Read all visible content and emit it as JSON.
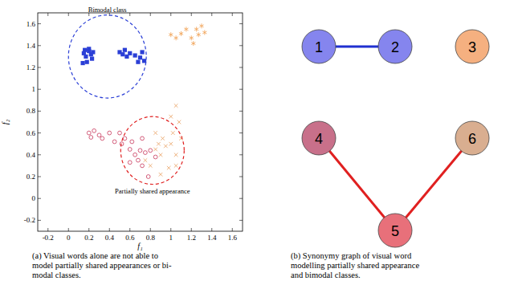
{
  "chart_data": {
    "type": "scatter",
    "xlabel": "f₁",
    "ylabel": "f₂",
    "xlim": [
      -0.3,
      1.7
    ],
    "ylim": [
      -0.3,
      1.7
    ],
    "xticks": [
      -0.2,
      0,
      0.2,
      0.4,
      0.6,
      0.8,
      1,
      1.2,
      1.4,
      1.6
    ],
    "yticks": [
      -0.2,
      0,
      0.2,
      0.4,
      0.6,
      0.8,
      1,
      1.2,
      1.4,
      1.6
    ],
    "grid": false,
    "series": [
      {
        "color": "#2b3fd6",
        "marker": "square",
        "x": [
          0.15,
          0.17,
          0.2,
          0.22,
          0.18,
          0.14,
          0.23,
          0.2,
          0.16,
          0.24,
          0.5,
          0.53,
          0.57,
          0.6,
          0.65,
          0.7,
          0.72,
          0.74,
          0.68,
          0.55
        ],
        "values": [
          1.33,
          1.3,
          1.35,
          1.32,
          1.25,
          1.24,
          1.28,
          1.37,
          1.36,
          1.34,
          1.34,
          1.32,
          1.3,
          1.33,
          1.31,
          1.29,
          1.34,
          1.26,
          1.25,
          1.36
        ]
      },
      {
        "color": "#f0a050",
        "marker": "star",
        "x": [
          1.0,
          1.05,
          1.15,
          1.2,
          1.25,
          1.27,
          1.3,
          1.33,
          1.22,
          1.1
        ],
        "values": [
          1.5,
          1.47,
          1.55,
          1.47,
          1.55,
          1.5,
          1.58,
          1.52,
          1.42,
          1.51
        ]
      },
      {
        "color": "#c8365a",
        "marker": "circle",
        "x": [
          0.2,
          0.22,
          0.25,
          0.3,
          0.33,
          0.4,
          0.45,
          0.5,
          0.52,
          0.55,
          0.6,
          0.62,
          0.65,
          0.68,
          0.7,
          0.72,
          0.75,
          0.78,
          0.8,
          0.85,
          0.6,
          0.72
        ],
        "values": [
          0.6,
          0.56,
          0.62,
          0.58,
          0.55,
          0.6,
          0.52,
          0.6,
          0.5,
          0.55,
          0.45,
          0.52,
          0.4,
          0.35,
          0.44,
          0.3,
          0.42,
          0.2,
          0.44,
          0.38,
          0.33,
          0.55
        ]
      },
      {
        "color": "#e8a060",
        "marker": "cross",
        "x": [
          0.75,
          0.8,
          0.85,
          0.88,
          0.9,
          0.92,
          0.95,
          1.0,
          1.02,
          1.05,
          1.05,
          1.08,
          0.98,
          0.9,
          1.1,
          1.0,
          0.85,
          1.05
        ],
        "values": [
          0.35,
          0.3,
          0.45,
          0.5,
          0.4,
          0.55,
          0.48,
          0.5,
          0.6,
          0.85,
          0.4,
          0.7,
          0.28,
          0.22,
          0.55,
          0.75,
          0.6,
          0.3
        ]
      }
    ],
    "regions": [
      {
        "label": "Bimodal class",
        "center": [
          0.38,
          1.3
        ],
        "radius": 0.38,
        "color": "#2b3fd6"
      },
      {
        "label": "Partially shared appearance",
        "center": [
          0.82,
          0.44
        ],
        "radius": 0.31,
        "color": "#e02020"
      }
    ],
    "caption": [
      "(a) Visual words alone are not able to",
      "model partially shared appearances or bi-",
      "modal classes."
    ]
  },
  "graph": {
    "nodes": [
      {
        "label": "1",
        "color": "#8585ee"
      },
      {
        "label": "2",
        "color": "#8585ee"
      },
      {
        "label": "3",
        "color": "#f5b080"
      },
      {
        "label": "4",
        "color": "#c8708a"
      },
      {
        "label": "5",
        "color": "#e8707a"
      },
      {
        "label": "6",
        "color": "#d9ae90"
      }
    ],
    "edges": [
      {
        "source": "1",
        "target": "2",
        "color": "#2030d0"
      },
      {
        "source": "4",
        "target": "5",
        "color": "#e02020"
      },
      {
        "source": "5",
        "target": "6",
        "color": "#e02020"
      }
    ],
    "caption": [
      "(b) Synonymy graph of visual word",
      "modelling partially shared appearance",
      "and bimodal classes."
    ]
  }
}
